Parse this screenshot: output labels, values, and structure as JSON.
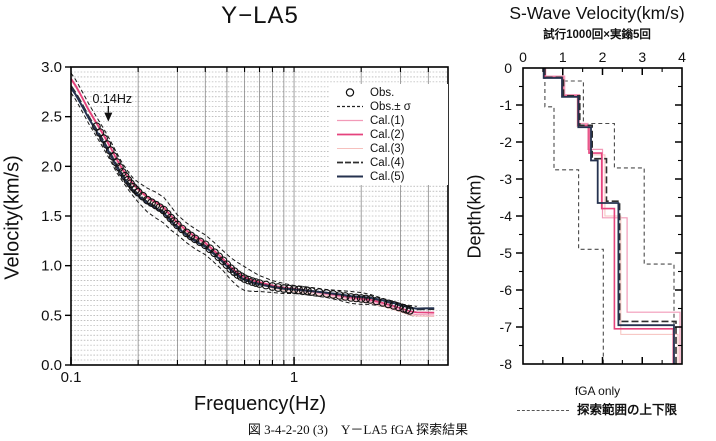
{
  "left_chart": {
    "title": "Y−LA5",
    "xlabel": "Frequency(Hz)",
    "ylabel": "Velocity(km/s)",
    "annotation": {
      "label": "0.14Hz",
      "freq": 0.147,
      "velocity": 2.45
    },
    "legend": {
      "items": [
        {
          "label": "Obs.",
          "type": "circle",
          "color": "#111111"
        },
        {
          "label": "Obs.± σ",
          "type": "dashed",
          "color": "#222222"
        },
        {
          "label": "Cal.(1)",
          "type": "line",
          "color": "#f29ab8",
          "width": 1.2
        },
        {
          "label": "Cal.(2)",
          "type": "line",
          "color": "#e5437d",
          "width": 1.8
        },
        {
          "label": "Cal.(3)",
          "type": "line",
          "color": "#f6c0bd",
          "width": 1.0
        },
        {
          "label": "Cal.(4)",
          "type": "dashline",
          "color": "#2e2e2e",
          "width": 1.8
        },
        {
          "label": "Cal.(5)",
          "type": "line",
          "color": "#25324f",
          "width": 2.0
        }
      ]
    }
  },
  "right_chart": {
    "title": "S-Wave Velocity(km/s)",
    "subtitle": "試行1000回×実鎓5回",
    "ylabel": "Depth(km)",
    "footer": "fGA only",
    "bounds_legend": "探索範囲の上下限"
  },
  "caption": "図 3-4-2-20 (3)　Y－LA5 fGA 探索結果",
  "chart_data": [
    {
      "type": "line",
      "title": "Y−LA5",
      "xlabel": "Frequency(Hz)",
      "ylabel": "Velocity(km/s)",
      "xscale": "log",
      "xlim": [
        0.1,
        4.9
      ],
      "ylim": [
        0.0,
        3.0
      ],
      "x_tick_labels": [
        {
          "f": 0.1,
          "label": "0.1"
        },
        {
          "f": 1,
          "label": "1"
        }
      ],
      "x_gridlines": [
        0.2,
        0.3,
        0.4,
        0.5,
        0.6,
        0.7,
        0.8,
        0.9,
        1,
        2,
        3,
        4
      ],
      "y_tick_labels": [
        {
          "v": 0.0,
          "label": "0.0"
        },
        {
          "v": 0.5,
          "label": "0.5"
        },
        {
          "v": 1.0,
          "label": "1.0"
        },
        {
          "v": 1.5,
          "label": "1.5"
        },
        {
          "v": 2.0,
          "label": "2.0"
        },
        {
          "v": 2.5,
          "label": "2.5"
        },
        {
          "v": 3.0,
          "label": "3.0"
        }
      ],
      "y_minor_step": 0.05,
      "freq": [
        0.1,
        0.105,
        0.11,
        0.115,
        0.12,
        0.13,
        0.14,
        0.15,
        0.16,
        0.17,
        0.18,
        0.19,
        0.2,
        0.22,
        0.24,
        0.26,
        0.28,
        0.3,
        0.33,
        0.36,
        0.4,
        0.44,
        0.48,
        0.52,
        0.56,
        0.6,
        0.65,
        0.7,
        0.8,
        0.9,
        1.0,
        1.1,
        1.2,
        1.4,
        1.6,
        1.8,
        2.0,
        2.2,
        2.5,
        2.8,
        3.1,
        3.3,
        3.55,
        3.8,
        4.25
      ],
      "obs": [
        2.84,
        2.77,
        2.69,
        2.61,
        2.53,
        2.4,
        2.28,
        2.16,
        2.04,
        1.94,
        1.86,
        1.79,
        1.74,
        1.66,
        1.61,
        1.56,
        1.48,
        1.41,
        1.33,
        1.27,
        1.21,
        1.13,
        1.05,
        0.97,
        0.91,
        0.87,
        0.84,
        0.82,
        0.79,
        0.77,
        0.76,
        0.75,
        0.74,
        0.72,
        0.7,
        0.68,
        0.67,
        0.66,
        0.63,
        0.6,
        0.57,
        0.55,
        0.54,
        0.54,
        0.54
      ],
      "sigma": [
        0.1,
        0.1,
        0.1,
        0.1,
        0.1,
        0.1,
        0.1,
        0.1,
        0.1,
        0.09,
        0.09,
        0.09,
        0.1,
        0.12,
        0.13,
        0.13,
        0.12,
        0.1,
        0.1,
        0.1,
        0.1,
        0.1,
        0.1,
        0.11,
        0.12,
        0.12,
        0.1,
        0.08,
        0.06,
        0.05,
        0.04,
        0.04,
        0.04,
        0.04,
        0.05,
        0.06,
        0.06,
        0.05,
        0.04,
        0.04,
        0.04,
        0.05,
        0.05,
        null,
        null
      ],
      "obs_circle_range": [
        0.13,
        3.3
      ],
      "series": [
        {
          "name": "Cal.(3)",
          "color": "#f6c0bd",
          "width": 1.0,
          "dash": null,
          "offset_start": 0.03,
          "offset_end": -0.055
        },
        {
          "name": "Cal.(1)",
          "color": "#f29ab8",
          "width": 1.2,
          "dash": null,
          "offset_start": 0.05,
          "offset_end": -0.04
        },
        {
          "name": "Cal.(2)",
          "color": "#e5437d",
          "width": 1.8,
          "dash": null,
          "offset_start": 0.04,
          "offset_end": -0.015
        },
        {
          "name": "Cal.(4)",
          "color": "#2e2e2e",
          "width": 1.8,
          "dash": "8,3",
          "offset_start": -0.03,
          "offset_end": 0.025
        },
        {
          "name": "Cal.(5)",
          "color": "#25324f",
          "width": 2.0,
          "dash": null,
          "offset_start": -0.05,
          "offset_end": 0.035
        }
      ]
    },
    {
      "type": "line",
      "title": "S-Wave Velocity(km/s)",
      "subtitle": "試行1000回×実鎓5回",
      "xlabel": "S-Wave Velocity(km/s)",
      "ylabel": "Depth(km)",
      "xlim": [
        0,
        4
      ],
      "ylim": [
        -8,
        0
      ],
      "x_tick_labels": [
        {
          "v": 0,
          "label": "0"
        },
        {
          "v": 1,
          "label": "1"
        },
        {
          "v": 2,
          "label": "2"
        },
        {
          "v": 3,
          "label": "3"
        },
        {
          "v": 4,
          "label": "4"
        }
      ],
      "y_tick_labels": [
        {
          "d": 0,
          "label": "0"
        },
        {
          "d": -1,
          "label": "-1"
        },
        {
          "d": -2,
          "label": "-2"
        },
        {
          "d": -3,
          "label": "-3"
        },
        {
          "d": -4,
          "label": "-4"
        },
        {
          "d": -5,
          "label": "-5"
        },
        {
          "d": -6,
          "label": "-6"
        },
        {
          "d": -7,
          "label": "-7"
        },
        {
          "d": -8,
          "label": "-8"
        }
      ],
      "profiles": [
        {
          "name": "search-range-lower",
          "role": "bound",
          "color": "#4a4a4a",
          "dash": "4,3",
          "width": 1.1,
          "boundaries": [
            0,
            -1.05,
            -2.75,
            -4.9,
            -8
          ],
          "velocities": [
            0.55,
            0.78,
            1.4,
            2.02
          ]
        },
        {
          "name": "search-range-upper",
          "role": "bound",
          "color": "#4a4a4a",
          "dash": "4,3",
          "width": 1.1,
          "boundaries": [
            0,
            -0.35,
            -1.5,
            -2.7,
            -5.3,
            -8
          ],
          "velocities": [
            1.0,
            1.52,
            2.3,
            3.05,
            3.8
          ]
        },
        {
          "name": "Cal.(1)",
          "role": "cal",
          "color": "#f29ab8",
          "dash": null,
          "width": 1.2,
          "boundaries": [
            0,
            -0.22,
            -0.72,
            -1.5,
            -2.2,
            -4.05,
            -6.6,
            -8
          ],
          "velocities": [
            0.57,
            1.05,
            1.42,
            1.63,
            2.0,
            2.62,
            3.95
          ]
        },
        {
          "name": "Cal.(3)",
          "role": "cal",
          "color": "#f6c0bd",
          "dash": null,
          "width": 1.0,
          "boundaries": [
            0,
            -0.26,
            -0.78,
            -1.58,
            -2.35,
            -4.0,
            -7.2,
            -8
          ],
          "velocities": [
            0.53,
            1.02,
            1.36,
            1.7,
            2.06,
            2.46,
            3.9
          ]
        },
        {
          "name": "Cal.(2)",
          "role": "cal",
          "color": "#e5437d",
          "dash": null,
          "width": 1.6,
          "boundaries": [
            0,
            -0.25,
            -0.76,
            -1.55,
            -2.3,
            -3.8,
            -7.05,
            -8
          ],
          "velocities": [
            0.55,
            1.0,
            1.38,
            1.66,
            1.98,
            2.3,
            3.78
          ]
        },
        {
          "name": "Cal.(4)",
          "role": "cal",
          "color": "#2e2e2e",
          "dash": "7,3",
          "width": 1.6,
          "boundaries": [
            0,
            -0.25,
            -0.75,
            -1.55,
            -2.45,
            -3.6,
            -6.85,
            -8
          ],
          "velocities": [
            0.55,
            1.02,
            1.43,
            1.74,
            2.1,
            2.43,
            3.85
          ]
        },
        {
          "name": "Cal.(5)",
          "role": "cal",
          "color": "#25324f",
          "dash": null,
          "width": 1.8,
          "boundaries": [
            0,
            -0.27,
            -0.78,
            -1.6,
            -2.5,
            -3.65,
            -6.95,
            -8
          ],
          "velocities": [
            0.52,
            0.98,
            1.39,
            1.71,
            1.88,
            2.4,
            3.8
          ]
        }
      ]
    }
  ]
}
